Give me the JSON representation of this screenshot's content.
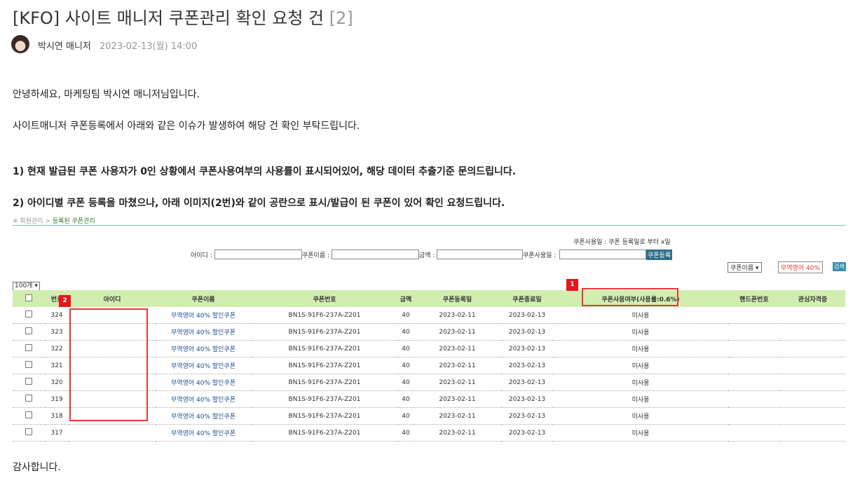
{
  "post": {
    "title": "[KFO] 사이트 매니저 쿠폰관리 확인 요청 건",
    "comment_count": "[2]",
    "author": "박시연 매니저",
    "date": "2023-02-13(월) 14:00"
  },
  "body": {
    "greeting": "안녕하세요, 마케팅팀 박시연 매니저님입니다.",
    "intro": "사이트매니저 쿠폰등록에서 아래와 같은 이슈가 발생하여 해당 건 확인 부탁드립니다.",
    "issue1": "1) 현재 발급된 쿠폰 사용자가 0인 상황에서 쿠폰사용여부의 사용률이 표시되어있어, 해당 데이터 추출기준 문의드립니다.",
    "issue2": "2) 아이디별 쿠폰 등록을 마쳤으나, 아래 이미지(2번)와 같이 공란으로 표시/발급이 된 쿠폰이 있어 확인 요청드립니다.",
    "closing": "감사합니다."
  },
  "screenshot": {
    "breadcrumb_root": "※ 회원관리 >",
    "breadcrumb_current": "등록된 쿠폰관리",
    "note": "쿠폰사용일 : 쿠폰 등록일로 부터 x일",
    "form": {
      "id_label": "아이디 :",
      "name_label": "쿠폰이름 :",
      "amount_label": "금액 :",
      "useday_label": "쿠폰사용일 :",
      "register_button": "쿠폰등록"
    },
    "search": {
      "field_select": "쿠폰이름",
      "query": "무역영어 40%",
      "button": "검색"
    },
    "page_size": "100개",
    "columns": [
      "번호",
      "아이디",
      "쿠폰이름",
      "쿠폰번호",
      "금액",
      "쿠폰등록일",
      "쿠폰종료일",
      "쿠폰사용여부(사용률:0.6%)",
      "핸드폰번호",
      "관심자격증"
    ],
    "rows": [
      {
        "no": "324",
        "id": "",
        "name": "무역영어 40% 할인쿠폰",
        "code": "BN1S-91F6-237A-Z201",
        "amount": "40",
        "start": "2023-02-11",
        "end": "2023-02-13",
        "used": "미사용",
        "phone": "",
        "interest": ""
      },
      {
        "no": "323",
        "id": "",
        "name": "무역영어 40% 할인쿠폰",
        "code": "BN1S-91F6-237A-Z201",
        "amount": "40",
        "start": "2023-02-11",
        "end": "2023-02-13",
        "used": "미사용",
        "phone": "",
        "interest": ""
      },
      {
        "no": "322",
        "id": "",
        "name": "무역영어 40% 할인쿠폰",
        "code": "BN1S-91F6-237A-Z201",
        "amount": "40",
        "start": "2023-02-11",
        "end": "2023-02-13",
        "used": "미사용",
        "phone": "",
        "interest": ""
      },
      {
        "no": "321",
        "id": "",
        "name": "무역영어 40% 할인쿠폰",
        "code": "BN1S-91F6-237A-Z201",
        "amount": "40",
        "start": "2023-02-11",
        "end": "2023-02-13",
        "used": "미사용",
        "phone": "",
        "interest": ""
      },
      {
        "no": "320",
        "id": "",
        "name": "무역영어 40% 할인쿠폰",
        "code": "BN1S-91F6-237A-Z201",
        "amount": "40",
        "start": "2023-02-11",
        "end": "2023-02-13",
        "used": "미사용",
        "phone": "",
        "interest": ""
      },
      {
        "no": "319",
        "id": "",
        "name": "무역영어 40% 할인쿠폰",
        "code": "BN1S-91F6-237A-Z201",
        "amount": "40",
        "start": "2023-02-11",
        "end": "2023-02-13",
        "used": "미사용",
        "phone": "",
        "interest": ""
      },
      {
        "no": "318",
        "id": "",
        "name": "무역영어 40% 할인쿠폰",
        "code": "BN1S-91F6-237A-Z201",
        "amount": "40",
        "start": "2023-02-11",
        "end": "2023-02-13",
        "used": "미사용",
        "phone": "",
        "interest": ""
      },
      {
        "no": "317",
        "id": "",
        "name": "무역영어 40% 할인쿠폰",
        "code": "BN1S-91F6-237A-Z201",
        "amount": "40",
        "start": "2023-02-11",
        "end": "2023-02-13",
        "used": "미사용",
        "phone": "",
        "interest": ""
      }
    ],
    "annotations": [
      "1",
      "2"
    ],
    "colors": {
      "header_bg": "#d2edb0",
      "highlight": "#e53935"
    }
  }
}
